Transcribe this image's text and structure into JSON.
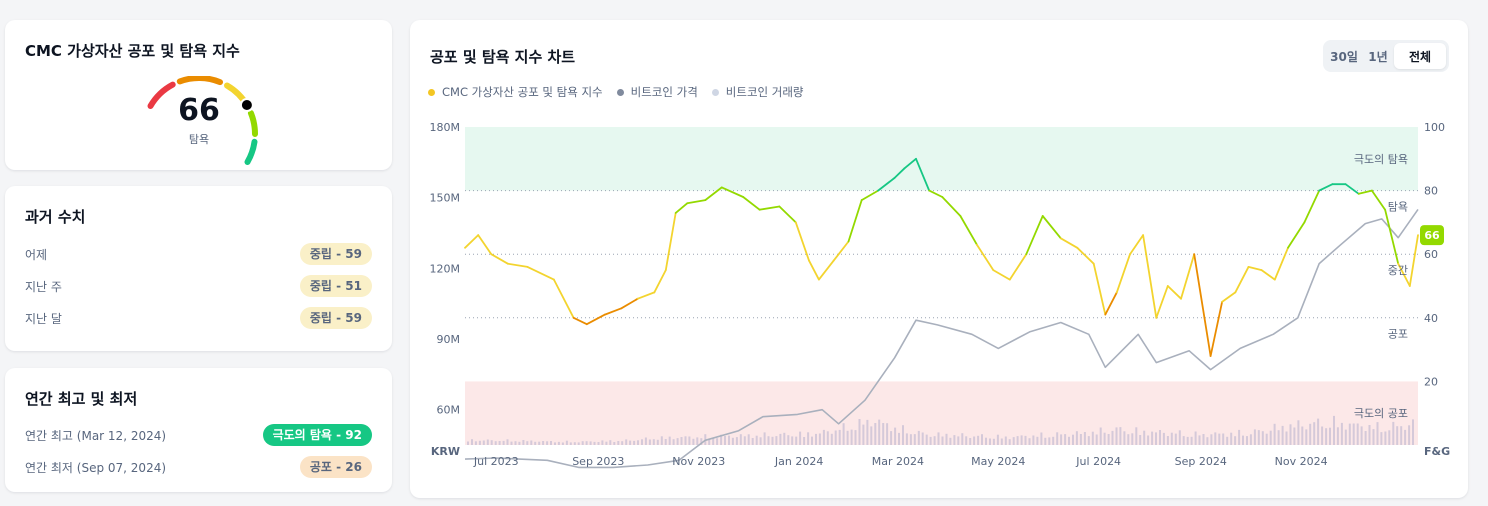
{
  "gauge": {
    "title": "CMC 가상자산 공포 및 탐욕 지수",
    "value": "66",
    "label": "탐욕",
    "colors": [
      "#ea3943",
      "#ea8c00",
      "#f3d42f",
      "#93d900",
      "#16c784"
    ]
  },
  "historical": {
    "title": "과거 수치",
    "rows": [
      {
        "label": "어제",
        "badge_text": "중립 - ",
        "badge_value": "59",
        "status": "neutral"
      },
      {
        "label": "지난 주",
        "badge_text": "중립 - ",
        "badge_value": "51",
        "status": "neutral"
      },
      {
        "label": "지난 달",
        "badge_text": "중립 - ",
        "badge_value": "59",
        "status": "neutral"
      }
    ]
  },
  "yearly": {
    "title": "연간 최고 및 최저",
    "rows": [
      {
        "label": "연간 최고 (Mar 12, 2024)",
        "badge_text": "극도의 탐욕 - ",
        "badge_value": "92",
        "status": "extreme-greed"
      },
      {
        "label": "연간 최저 (Sep 07, 2024)",
        "badge_text": "공포 - ",
        "badge_value": "26",
        "status": "fear"
      }
    ]
  },
  "chart_panel": {
    "title": "공포 및 탐욕 지수 차트",
    "tabs": [
      "30일",
      "1년",
      "전체"
    ],
    "active_tab": "전체",
    "legend": [
      {
        "label": "CMC 가상자산 공포 및 탐욕 지수",
        "color": "#f3c623"
      },
      {
        "label": "비트코인 가격",
        "color": "#808a9d"
      },
      {
        "label": "비트코인 거래량",
        "color": "#cfd6e4"
      }
    ]
  },
  "chart_data": {
    "type": "line",
    "x_ticks": [
      "Jul 2023",
      "Sep 2023",
      "Nov 2023",
      "Jan 2024",
      "Mar 2024",
      "May 2024",
      "Jul 2024",
      "Sep 2024",
      "Nov 2024"
    ],
    "x_range": [
      "2023-06-12",
      "2025-01-11"
    ],
    "y_left": {
      "label": "KRW",
      "ticks": [
        "180M",
        "150M",
        "120M",
        "90M",
        "60M"
      ],
      "range": [
        45000000,
        180000000
      ]
    },
    "y_right": {
      "label": "F&G",
      "ticks": [
        "100",
        "80",
        "60",
        "40",
        "20"
      ],
      "range": [
        0,
        100
      ]
    },
    "zones": [
      {
        "label": "극도의 탐욕",
        "from": 80,
        "to": 100,
        "color": "#e6f8f0"
      },
      {
        "label": "탐욕",
        "y": 75
      },
      {
        "label": "중간",
        "y": 55
      },
      {
        "label": "공포",
        "y": 35
      },
      {
        "label": "극도의 공포",
        "from": 0,
        "to": 20,
        "color": "#fce8e8"
      }
    ],
    "current_value": "66",
    "grid": true,
    "fear_greed_series": {
      "name": "CMC 가상자산 공포 및 탐욕 지수",
      "x": [
        "2023-06-12",
        "2023-06-20",
        "2023-06-28",
        "2023-07-08",
        "2023-07-20",
        "2023-08-05",
        "2023-08-17",
        "2023-08-25",
        "2023-09-05",
        "2023-09-15",
        "2023-09-25",
        "2023-10-05",
        "2023-10-12",
        "2023-10-18",
        "2023-10-25",
        "2023-11-05",
        "2023-11-15",
        "2023-11-28",
        "2023-12-08",
        "2023-12-20",
        "2023-12-30",
        "2024-01-07",
        "2024-01-13",
        "2024-01-22",
        "2024-01-31",
        "2024-02-08",
        "2024-02-18",
        "2024-02-28",
        "2024-03-05",
        "2024-03-12",
        "2024-03-20",
        "2024-03-28",
        "2024-04-08",
        "2024-04-18",
        "2024-04-28",
        "2024-05-08",
        "2024-05-18",
        "2024-05-28",
        "2024-06-08",
        "2024-06-18",
        "2024-06-28",
        "2024-07-05",
        "2024-07-12",
        "2024-07-20",
        "2024-07-28",
        "2024-08-05",
        "2024-08-12",
        "2024-08-20",
        "2024-08-28",
        "2024-09-07",
        "2024-09-14",
        "2024-09-22",
        "2024-09-30",
        "2024-10-08",
        "2024-10-16",
        "2024-10-24",
        "2024-11-03",
        "2024-11-12",
        "2024-11-20",
        "2024-11-28",
        "2024-12-06",
        "2024-12-14",
        "2024-12-22",
        "2024-12-30",
        "2025-01-06",
        "2025-01-11"
      ],
      "values": [
        62,
        66,
        60,
        57,
        56,
        52,
        40,
        38,
        41,
        43,
        46,
        48,
        55,
        73,
        76,
        77,
        81,
        78,
        74,
        75,
        70,
        58,
        52,
        58,
        64,
        77,
        80,
        84,
        87,
        90,
        80,
        78,
        72,
        63,
        55,
        52,
        60,
        72,
        65,
        62,
        57,
        41,
        48,
        60,
        66,
        40,
        50,
        46,
        60,
        28,
        45,
        48,
        56,
        55,
        52,
        62,
        70,
        80,
        82,
        82,
        79,
        80,
        74,
        57,
        50,
        66
      ]
    },
    "btc_price_series": {
      "name": "비트코인 가격",
      "x": [
        "2023-06-12",
        "2023-07-01",
        "2023-08-01",
        "2023-08-20",
        "2023-09-10",
        "2023-10-01",
        "2023-10-20",
        "2023-11-05",
        "2023-11-25",
        "2023-12-10",
        "2023-12-31",
        "2024-01-15",
        "2024-01-25",
        "2024-02-10",
        "2024-02-28",
        "2024-03-12",
        "2024-03-25",
        "2024-04-15",
        "2024-05-01",
        "2024-05-20",
        "2024-06-08",
        "2024-06-25",
        "2024-07-05",
        "2024-07-25",
        "2024-08-05",
        "2024-08-25",
        "2024-09-07",
        "2024-09-25",
        "2024-10-15",
        "2024-10-30",
        "2024-11-12",
        "2024-11-25",
        "2024-12-10",
        "2024-12-20",
        "2024-12-30",
        "2025-01-11"
      ],
      "values": [
        39000000,
        39500000,
        38500000,
        35500000,
        35500000,
        36500000,
        38500000,
        47000000,
        51000000,
        57000000,
        58000000,
        60000000,
        54000000,
        64000000,
        82000000,
        98000000,
        96000000,
        92000000,
        86000000,
        93000000,
        97000000,
        92000000,
        78000000,
        92000000,
        80000000,
        85000000,
        77000000,
        86000000,
        92000000,
        99000000,
        122000000,
        130000000,
        139000000,
        141000000,
        133000000,
        145000000
      ]
    },
    "btc_volume_series": {
      "name": "비트코인 거래량",
      "note": "relative bar heights",
      "values": [
        0.14,
        0.13,
        0.12,
        0.1,
        0.09,
        0.11,
        0.13,
        0.2,
        0.22,
        0.24,
        0.26,
        0.28,
        0.3,
        0.33,
        0.5,
        0.7,
        0.45,
        0.3,
        0.28,
        0.25,
        0.22,
        0.27,
        0.3,
        0.35,
        0.45,
        0.38,
        0.35,
        0.3,
        0.32,
        0.35,
        0.5,
        0.6,
        0.65,
        0.55,
        0.5,
        0.6
      ]
    }
  }
}
